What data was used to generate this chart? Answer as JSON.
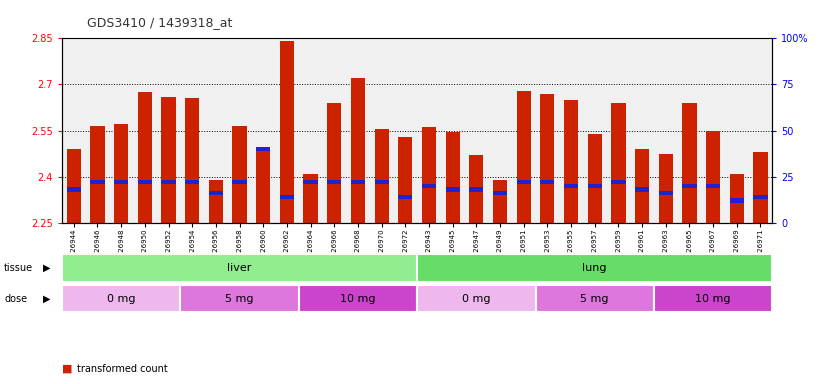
{
  "title": "GDS3410 / 1439318_at",
  "samples": [
    "GSM326944",
    "GSM326946",
    "GSM326948",
    "GSM326950",
    "GSM326952",
    "GSM326954",
    "GSM326956",
    "GSM326958",
    "GSM326960",
    "GSM326962",
    "GSM326964",
    "GSM326966",
    "GSM326968",
    "GSM326970",
    "GSM326972",
    "GSM326943",
    "GSM326945",
    "GSM326947",
    "GSM326949",
    "GSM326951",
    "GSM326953",
    "GSM326955",
    "GSM326957",
    "GSM326959",
    "GSM326961",
    "GSM326963",
    "GSM326965",
    "GSM326967",
    "GSM326969",
    "GSM326971"
  ],
  "transformed_count": [
    2.49,
    2.565,
    2.57,
    2.675,
    2.66,
    2.655,
    2.39,
    2.565,
    2.49,
    2.84,
    2.41,
    2.64,
    2.72,
    2.555,
    2.53,
    2.56,
    2.545,
    2.47,
    2.39,
    2.68,
    2.67,
    2.65,
    2.54,
    2.64,
    2.49,
    2.475,
    2.64,
    2.55,
    2.41,
    2.48
  ],
  "percentile_rank": [
    18,
    22,
    22,
    22,
    22,
    22,
    16,
    22,
    40,
    14,
    22,
    22,
    22,
    22,
    14,
    20,
    18,
    18,
    16,
    22,
    22,
    20,
    20,
    22,
    18,
    16,
    20,
    20,
    12,
    14
  ],
  "ymin": 2.25,
  "ymax": 2.85,
  "yticks": [
    2.25,
    2.4,
    2.55,
    2.7,
    2.85
  ],
  "right_yticks": [
    0,
    25,
    50,
    75,
    100
  ],
  "tissue_groups": [
    {
      "label": "liver",
      "start": 0,
      "end": 15,
      "color": "#90EE90"
    },
    {
      "label": "lung",
      "start": 15,
      "end": 30,
      "color": "#66DD66"
    }
  ],
  "dose_groups": [
    {
      "label": "0 mg",
      "start": 0,
      "end": 5,
      "color": "#EEB8EE"
    },
    {
      "label": "5 mg",
      "start": 5,
      "end": 10,
      "color": "#DD77DD"
    },
    {
      "label": "10 mg",
      "start": 10,
      "end": 15,
      "color": "#CC44CC"
    },
    {
      "label": "0 mg",
      "start": 15,
      "end": 20,
      "color": "#EEB8EE"
    },
    {
      "label": "5 mg",
      "start": 20,
      "end": 25,
      "color": "#DD77DD"
    },
    {
      "label": "10 mg",
      "start": 25,
      "end": 30,
      "color": "#CC44CC"
    }
  ],
  "bar_color": "#CC2200",
  "blue_color": "#2222CC",
  "bg_color": "#F0F0F0",
  "title_color": "#333333"
}
